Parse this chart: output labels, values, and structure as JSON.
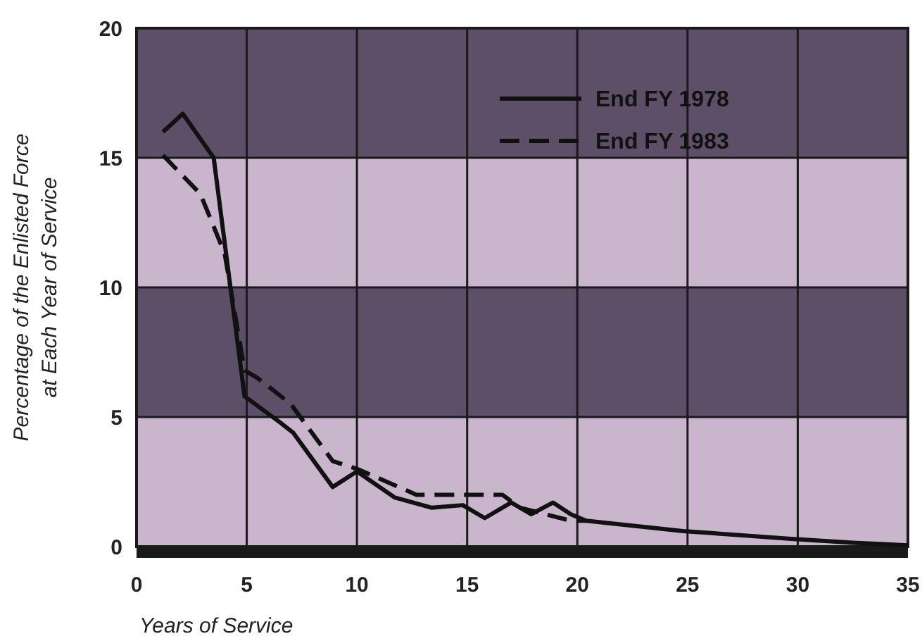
{
  "chart_data": {
    "type": "line",
    "xlabel": "Years of Service",
    "ylabel": "Percentage of the Enlisted Force\nat Each Year of Service",
    "xlim": [
      0,
      35
    ],
    "xticks": [
      0,
      5,
      10,
      15,
      20,
      25,
      30,
      35
    ],
    "ylim": [
      0,
      20
    ],
    "yticks": [
      0,
      5,
      10,
      15,
      20
    ],
    "grid": true,
    "legend": "top right",
    "series": [
      {
        "name": "End FY 1978",
        "color": "#111111",
        "line_style": "solid",
        "x": [
          1.2,
          2.1,
          3.5,
          4.9,
          6.5,
          7.1,
          8.9,
          10,
          11.7,
          13.4,
          14.8,
          15.8,
          17,
          17.9,
          18.9,
          19.7,
          20.4,
          24.8,
          29.7,
          32.5,
          35
        ],
        "values": [
          16,
          16.7,
          15,
          5.8,
          4.8,
          4.4,
          2.3,
          2.9,
          1.9,
          1.5,
          1.6,
          1.1,
          1.7,
          1.25,
          1.7,
          1.25,
          1,
          0.6,
          0.3,
          0.15,
          0.05
        ]
      },
      {
        "name": "End FY 1983",
        "color": "#111111",
        "line_style": "dashed",
        "x": [
          1.2,
          2.9,
          4,
          4.9,
          5.5,
          7,
          8.9,
          10,
          12.7,
          16.6,
          17.4,
          19.7,
          20.4
        ],
        "values": [
          15.1,
          13.6,
          11.3,
          6.8,
          6.5,
          5.5,
          3.3,
          3,
          2,
          2,
          1.5,
          1,
          1
        ]
      }
    ]
  }
}
